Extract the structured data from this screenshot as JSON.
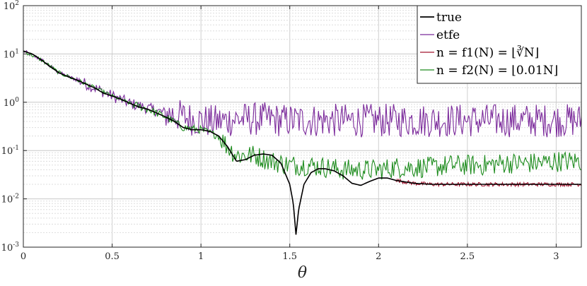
{
  "chart_data": {
    "type": "line",
    "xlabel": "θ",
    "ylabel": "",
    "title": "",
    "yscale": "log",
    "xlim": [
      0,
      3.1416
    ],
    "ylim": [
      0.001,
      100
    ],
    "grid": "on",
    "legend_position": "top-right",
    "x_ticks": [
      {
        "value": 0,
        "label": "0"
      },
      {
        "value": 0.5,
        "label": "0.5"
      },
      {
        "value": 1,
        "label": "1"
      },
      {
        "value": 1.5,
        "label": "1.5"
      },
      {
        "value": 2,
        "label": "2"
      },
      {
        "value": 2.5,
        "label": "2.5"
      },
      {
        "value": 3,
        "label": "3"
      }
    ],
    "y_ticks": [
      {
        "value": 0.001,
        "base": "10",
        "exp": "-3"
      },
      {
        "value": 0.01,
        "base": "10",
        "exp": "-2"
      },
      {
        "value": 0.1,
        "base": "10",
        "exp": "-1"
      },
      {
        "value": 1,
        "base": "10",
        "exp": "0"
      },
      {
        "value": 10,
        "base": "10",
        "exp": "1"
      },
      {
        "value": 100,
        "base": "10",
        "exp": "2"
      }
    ],
    "series": [
      {
        "name": "true",
        "color": "#000000",
        "style": "smooth",
        "x": [
          0,
          0.05,
          0.1,
          0.15,
          0.2,
          0.25,
          0.3,
          0.35,
          0.4,
          0.45,
          0.5,
          0.55,
          0.6,
          0.65,
          0.7,
          0.75,
          0.8,
          0.85,
          0.9,
          0.95,
          1.0,
          1.05,
          1.1,
          1.15,
          1.2,
          1.25,
          1.3,
          1.35,
          1.4,
          1.45,
          1.5,
          1.52,
          1.535,
          1.55,
          1.58,
          1.62,
          1.66,
          1.7,
          1.75,
          1.8,
          1.85,
          1.9,
          1.95,
          2.0,
          2.05,
          2.1,
          2.2,
          2.3,
          2.4,
          2.5,
          2.6,
          2.7,
          2.8,
          2.9,
          3.0,
          3.1416
        ],
        "y": [
          11.5,
          10.0,
          7.6,
          5.5,
          4.1,
          3.4,
          2.9,
          2.4,
          2.0,
          1.55,
          1.35,
          1.15,
          0.95,
          0.8,
          0.72,
          0.6,
          0.5,
          0.4,
          0.3,
          0.27,
          0.27,
          0.25,
          0.2,
          0.12,
          0.06,
          0.065,
          0.08,
          0.085,
          0.08,
          0.055,
          0.02,
          0.008,
          0.0018,
          0.006,
          0.02,
          0.035,
          0.042,
          0.042,
          0.038,
          0.03,
          0.021,
          0.019,
          0.023,
          0.027,
          0.027,
          0.024,
          0.021,
          0.02,
          0.02,
          0.02,
          0.02,
          0.02,
          0.02,
          0.02,
          0.02,
          0.02
        ]
      },
      {
        "name": "etfe",
        "color": "#7B2A9B",
        "style": "noisy",
        "x": [
          0,
          0.1,
          0.2,
          0.3,
          0.4,
          0.5,
          0.6,
          0.7,
          0.8,
          0.85,
          0.9,
          0.95,
          1.0,
          1.05,
          1.1,
          1.15,
          1.2,
          1.25,
          1.3,
          1.35,
          1.4,
          1.45,
          1.5,
          1.55,
          1.6,
          1.65,
          1.7,
          1.75,
          1.8,
          1.9,
          2.0,
          2.1,
          2.2,
          2.3,
          2.4,
          2.5,
          2.6,
          2.7,
          2.8,
          2.9,
          3.0,
          3.1416
        ],
        "y": [
          11.5,
          7.6,
          4.1,
          2.9,
          2.0,
          1.35,
          0.95,
          0.75,
          0.6,
          0.55,
          0.5,
          0.45,
          0.42,
          0.4,
          0.4,
          0.42,
          0.45,
          0.45,
          0.45,
          0.45,
          0.45,
          0.42,
          0.42,
          0.42,
          0.42,
          0.42,
          0.42,
          0.42,
          0.42,
          0.42,
          0.42,
          0.42,
          0.42,
          0.42,
          0.42,
          0.42,
          0.42,
          0.42,
          0.42,
          0.42,
          0.42,
          0.42
        ]
      },
      {
        "name": "n = f1(N) = ⌊∛N⌋",
        "color": "#A2142F",
        "style": "smooth",
        "x": [
          0,
          0.05,
          0.1,
          0.15,
          0.2,
          0.25,
          0.3,
          0.35,
          0.4,
          0.45,
          0.5,
          0.55,
          0.6,
          0.65,
          0.7,
          0.75,
          0.8,
          0.85,
          0.9,
          0.95,
          1.0,
          1.05,
          1.1,
          1.15,
          1.2,
          1.25,
          1.3,
          1.35,
          1.4,
          1.45,
          1.5,
          1.52,
          1.535,
          1.55,
          1.58,
          1.62,
          1.66,
          1.7,
          1.75,
          1.8,
          1.85,
          1.9,
          1.95,
          2.0,
          2.05,
          2.1,
          2.2,
          2.3,
          2.4,
          2.5,
          2.6,
          2.7,
          2.8,
          2.9,
          3.0,
          3.1416
        ],
        "y": [
          11.5,
          10.0,
          7.6,
          5.5,
          4.1,
          3.4,
          2.9,
          2.4,
          2.0,
          1.55,
          1.35,
          1.15,
          0.95,
          0.8,
          0.72,
          0.6,
          0.5,
          0.4,
          0.3,
          0.27,
          0.27,
          0.25,
          0.2,
          0.12,
          0.06,
          0.065,
          0.08,
          0.085,
          0.08,
          0.055,
          0.02,
          0.008,
          0.0018,
          0.006,
          0.02,
          0.035,
          0.042,
          0.042,
          0.038,
          0.03,
          0.021,
          0.019,
          0.023,
          0.027,
          0.027,
          0.024,
          0.021,
          0.02,
          0.02,
          0.02,
          0.02,
          0.02,
          0.02,
          0.02,
          0.02,
          0.02
        ]
      },
      {
        "name": "n = f2(N) = ⌊0.01N⌋",
        "color": "#1E8C1E",
        "style": "noisy",
        "x": [
          0,
          0.1,
          0.2,
          0.3,
          0.4,
          0.5,
          0.6,
          0.7,
          0.8,
          0.9,
          1.0,
          1.1,
          1.15,
          1.2,
          1.25,
          1.3,
          1.4,
          1.5,
          1.6,
          1.7,
          1.8,
          1.9,
          2.0,
          2.1,
          2.2,
          2.3,
          2.4,
          2.5,
          2.6,
          2.7,
          2.8,
          2.9,
          3.0,
          3.1416
        ],
        "y": [
          11.5,
          7.6,
          4.1,
          2.9,
          2.0,
          1.35,
          0.95,
          0.72,
          0.5,
          0.3,
          0.27,
          0.2,
          0.12,
          0.08,
          0.08,
          0.08,
          0.06,
          0.05,
          0.05,
          0.045,
          0.04,
          0.04,
          0.04,
          0.045,
          0.045,
          0.045,
          0.05,
          0.05,
          0.05,
          0.055,
          0.055,
          0.055,
          0.06,
          0.06
        ]
      }
    ],
    "legend": {
      "entries": [
        {
          "label": "true",
          "color": "#000000"
        },
        {
          "label": "etfe",
          "color": "#7B2A9B"
        },
        {
          "label": "n = f1(N) = ⌊∛N⌋",
          "color": "#A2142F"
        },
        {
          "label": "n = f2(N) = ⌊0.01N⌋",
          "color": "#1E8C1E"
        }
      ]
    }
  }
}
